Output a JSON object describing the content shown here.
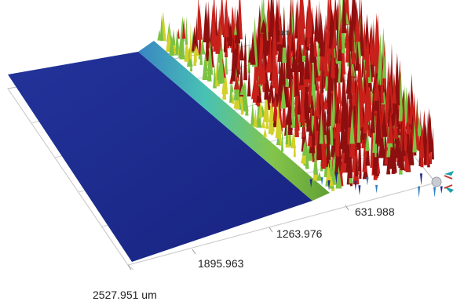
{
  "viewer": {
    "axis_ticks": [
      "631.988",
      "1263.976",
      "1895.963"
    ],
    "axis_end_label": "2527.951 um",
    "top_unit_label": "um"
  },
  "surface": {
    "flat_color": "#1c2a8c",
    "colormap": [
      "#1c2a8c",
      "#2f7fc0",
      "#3fbfb0",
      "#7cc242",
      "#d4d02a",
      "#c8201a",
      "#8e0f0f"
    ]
  },
  "gizmo": {
    "icon": "navigation-gizmo-icon",
    "colors": [
      "#1a9fb0",
      "#c23a2a",
      "#b8bcc2"
    ]
  }
}
